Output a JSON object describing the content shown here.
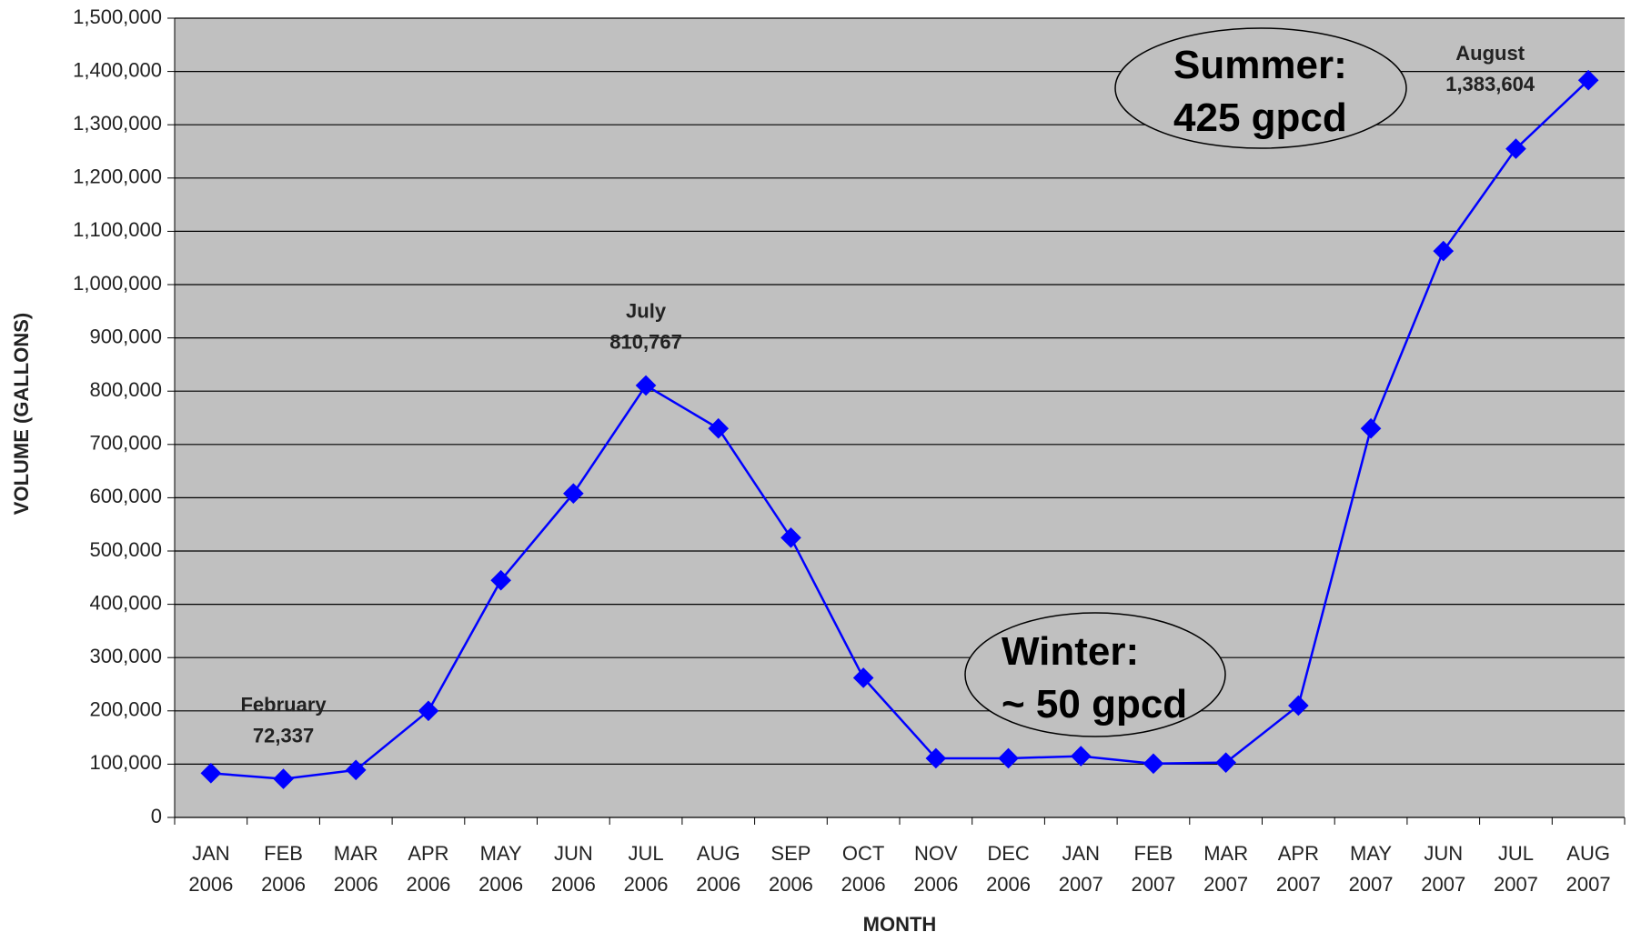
{
  "chart_data": {
    "type": "line",
    "x_label": "MONTH",
    "y_label": "VOLUME (GALLONS)",
    "categories": [
      "JAN\n2006",
      "FEB\n2006",
      "MAR\n2006",
      "APR\n2006",
      "MAY\n2006",
      "JUN\n2006",
      "JUL\n2006",
      "AUG\n2006",
      "SEP\n2006",
      "OCT\n2006",
      "NOV\n2006",
      "DEC\n2006",
      "JAN\n2007",
      "FEB\n2007",
      "MAR\n2007",
      "APR\n2007",
      "MAY\n2007",
      "JUN\n2007",
      "JUL\n2007",
      "AUG\n2007"
    ],
    "series": [
      {
        "color": "#0000ff",
        "values": [
          83000,
          72337,
          89000,
          200000,
          445000,
          608000,
          810767,
          730000,
          525000,
          262000,
          111000,
          111000,
          115000,
          101000,
          103000,
          210000,
          730000,
          1063000,
          1255000,
          1383604
        ],
        "value_labels": [
          null,
          "72,337",
          null,
          null,
          null,
          null,
          "810,767",
          null,
          null,
          null,
          null,
          null,
          null,
          null,
          null,
          null,
          null,
          null,
          null,
          "1,383,604"
        ],
        "point_names": [
          null,
          "February",
          null,
          null,
          null,
          null,
          "July",
          null,
          null,
          null,
          null,
          null,
          null,
          null,
          null,
          null,
          null,
          null,
          null,
          "August"
        ]
      }
    ],
    "ylim": [
      0,
      1500000
    ],
    "yticks": [
      0,
      {
        "value": 100000,
        "label": "100,000"
      },
      {
        "value": 200000,
        "label": "200,000"
      },
      {
        "value": 300000,
        "label": "300,000"
      },
      {
        "value": 400000,
        "label": "400,000"
      },
      {
        "value": 500000,
        "label": "500,000"
      },
      {
        "value": 600000,
        "label": "600,000"
      },
      {
        "value": 700000,
        "label": "700,000"
      },
      {
        "value": 800000,
        "label": "800,000"
      },
      {
        "value": 900000,
        "label": "900,000"
      },
      {
        "value": 1000000,
        "label": "1,000,000"
      },
      {
        "value": 1100000,
        "label": "1,100,000"
      },
      {
        "value": 1200000,
        "label": "1,200,000"
      },
      {
        "value": 1300000,
        "label": "1,300,000"
      },
      {
        "value": 1400000,
        "label": "1,400,000"
      },
      {
        "value": 1500000,
        "label": "1,500,000"
      }
    ],
    "grid": true,
    "callouts": [
      "Summer:\n425 gpcd",
      "Winter:\n~ 50 gpcd"
    ]
  }
}
